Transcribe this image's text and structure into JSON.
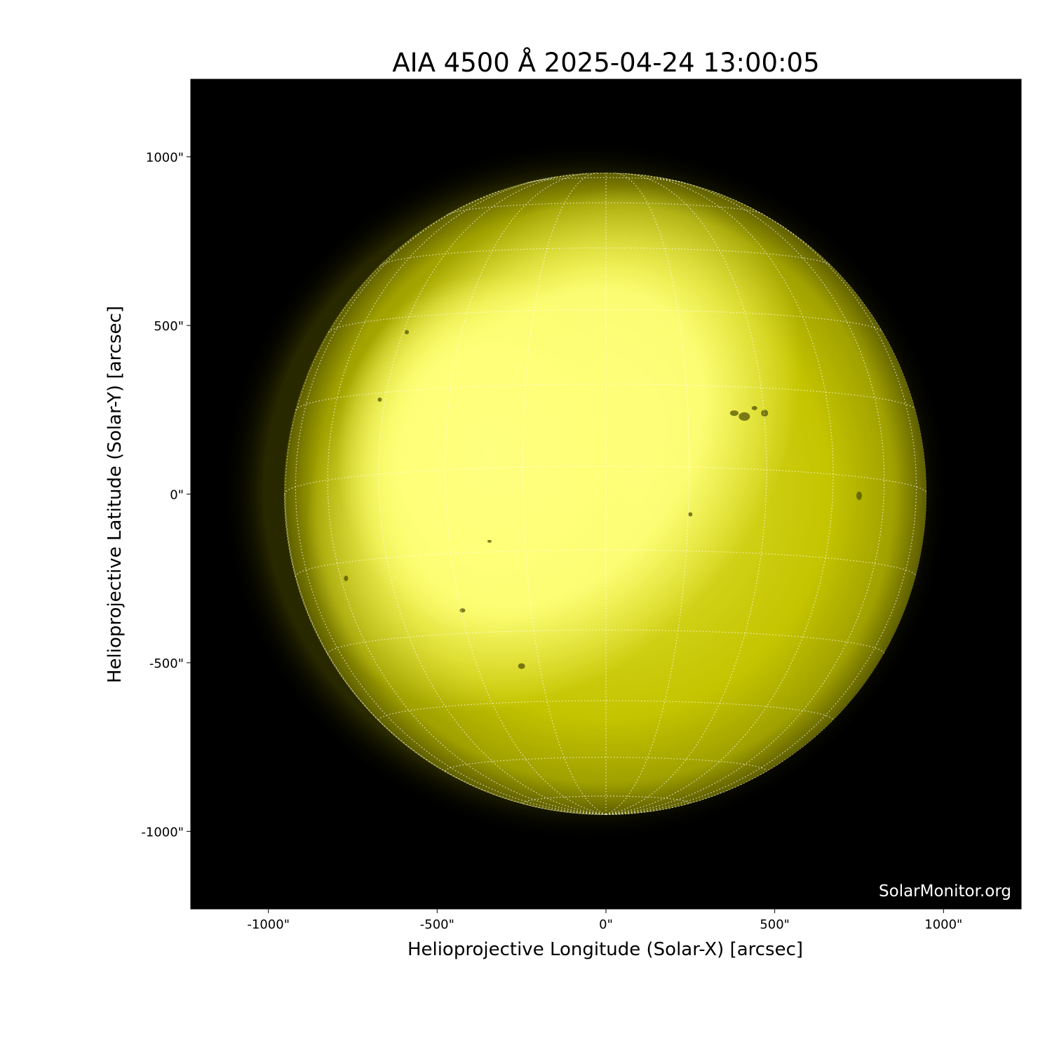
{
  "chart_data": {
    "type": "heatmap",
    "title": "AIA 4500 Å 2025-04-24 13:00:05",
    "xlabel": "Helioprojective Longitude (Solar-X) [arcsec]",
    "ylabel": "Helioprojective Latitude (Solar-Y) [arcsec]",
    "xlim": [
      -1230,
      1230
    ],
    "ylim": [
      -1230,
      1230
    ],
    "xticks": [
      -1000,
      -500,
      0,
      500,
      1000
    ],
    "yticks": [
      -1000,
      -500,
      0,
      500,
      1000
    ],
    "xtick_labels": [
      "-1000\"",
      "-500\"",
      "0\"",
      "500\"",
      "1000\""
    ],
    "ytick_labels": [
      "-1000\"",
      "-500\"",
      "0\"",
      "500\"",
      "1000\""
    ],
    "solar_radius_arcsec": 952,
    "grid": "heliographic, 15° spacing, white dotted",
    "colormap": {
      "background": "#000000",
      "limb": "#5e5e00",
      "mid": "#c8c800",
      "bright": "#ffff80"
    },
    "watermark": "SolarMonitor.org"
  }
}
